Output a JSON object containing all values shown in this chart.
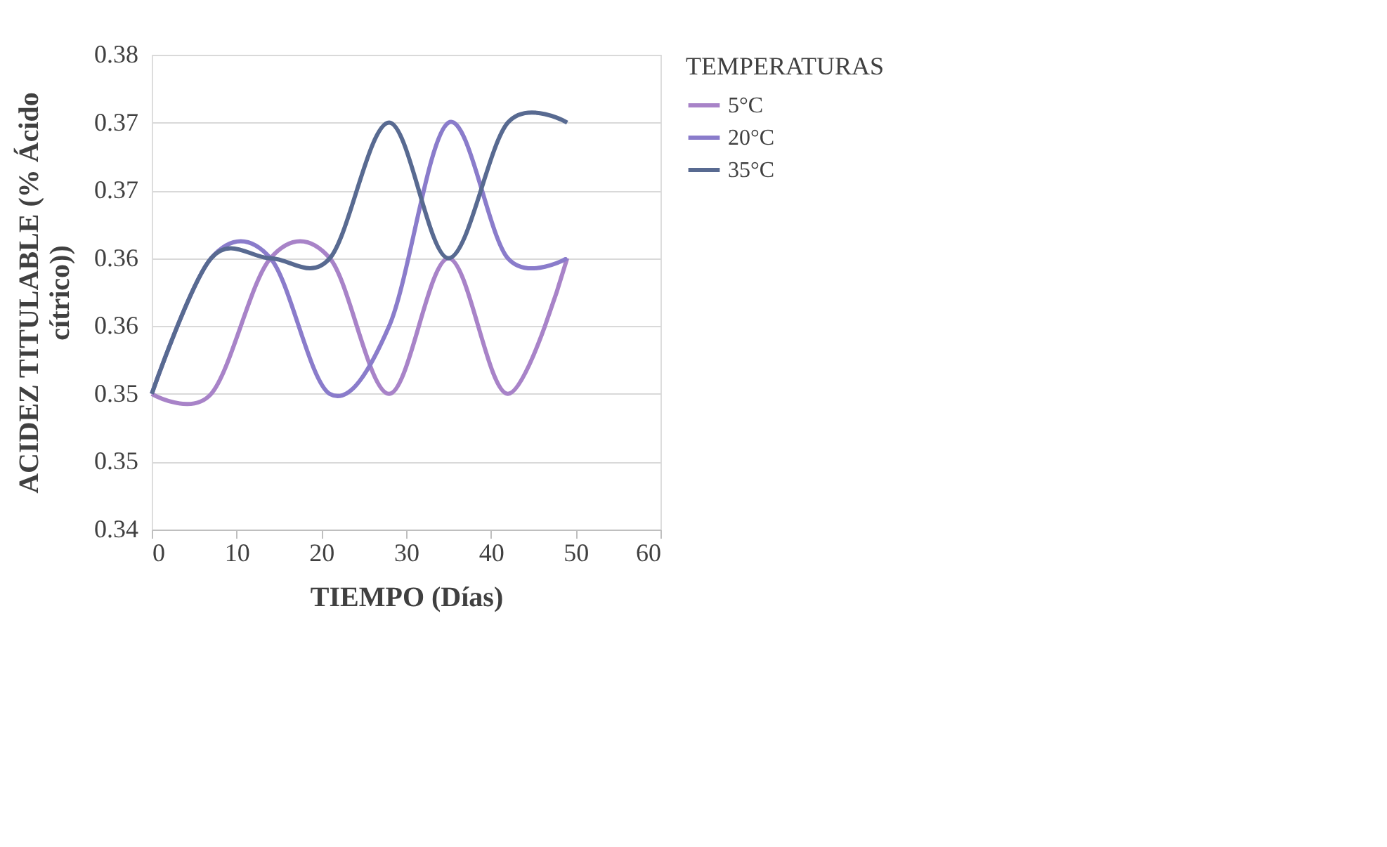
{
  "chart_data": {
    "type": "line",
    "xlabel": "TIEMPO (Días)",
    "ylabel": "ACIDEZ TITULABLE (% Ácido cítrico))",
    "legend_title": "TEMPERATURAS",
    "legend": "right",
    "grid": "y",
    "marker": "none",
    "line_style": "solid",
    "x": [
      0,
      7,
      14,
      21,
      28,
      35,
      42,
      49
    ],
    "series": [
      {
        "name": "5°C",
        "color": "#a883c8",
        "values": [
          0.35,
          0.35,
          0.36,
          0.36,
          0.35,
          0.36,
          0.35,
          0.36
        ]
      },
      {
        "name": "20°C",
        "color": "#8a7ccb",
        "values": [
          0.35,
          0.36,
          0.36,
          0.35,
          0.355,
          0.37,
          0.36,
          0.36
        ]
      },
      {
        "name": "35°C",
        "color": "#586a91",
        "values": [
          0.35,
          0.36,
          0.36,
          0.36,
          0.37,
          0.36,
          0.37,
          0.37
        ]
      }
    ],
    "xlim": [
      0,
      60
    ],
    "xticks": [
      0,
      10,
      20,
      30,
      40,
      50,
      60
    ],
    "ylim": [
      0.34,
      0.375
    ],
    "yticks": [
      {
        "value": 0.34,
        "label": "0.34"
      },
      {
        "value": 0.345,
        "label": "0.35"
      },
      {
        "value": 0.35,
        "label": "0.35"
      },
      {
        "value": 0.355,
        "label": "0.36"
      },
      {
        "value": 0.36,
        "label": "0.36"
      },
      {
        "value": 0.365,
        "label": "0.37"
      },
      {
        "value": 0.37,
        "label": "0.37"
      },
      {
        "value": 0.375,
        "label": "0.38"
      }
    ]
  }
}
